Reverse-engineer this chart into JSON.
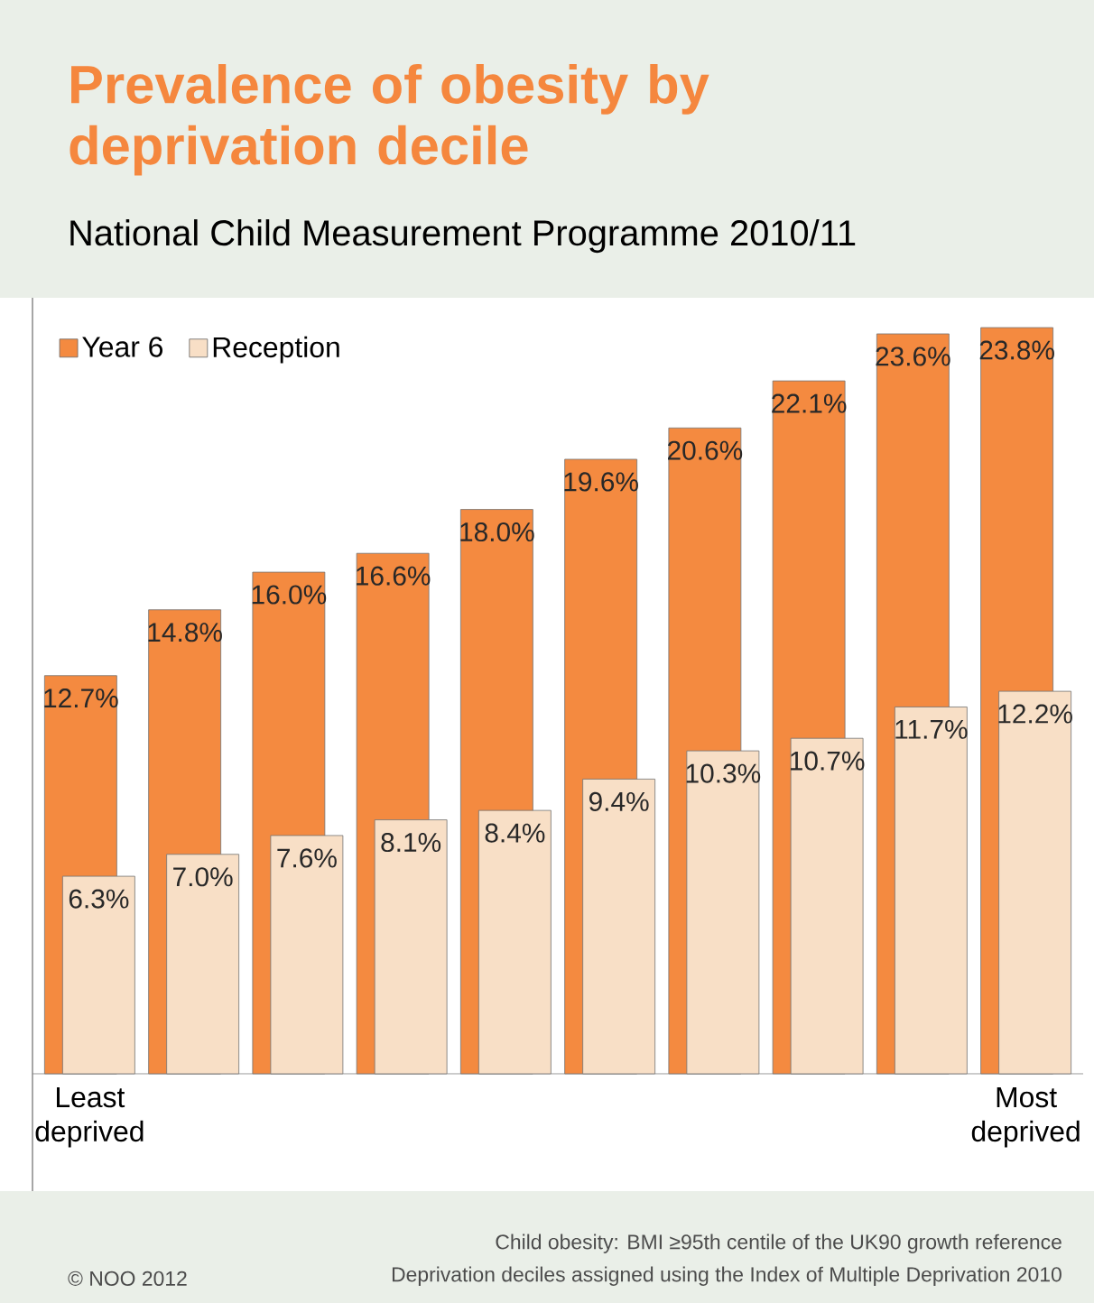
{
  "chart_data": {
    "type": "bar",
    "title": "Prevalence of obesity by deprivation decile",
    "subtitle": "National Child Measurement Programme 2010/11",
    "categories": [
      "Least deprived",
      null,
      null,
      null,
      null,
      null,
      null,
      null,
      null,
      "Most deprived"
    ],
    "series": [
      {
        "name": "Year 6",
        "color": "#f48a40",
        "values": [
          12.7,
          14.8,
          16.0,
          16.6,
          18.0,
          19.6,
          20.6,
          22.1,
          23.6,
          23.8
        ],
        "value_labels": [
          "12.7%",
          "14.8%",
          "16.0%",
          "16.6%",
          "18.0%",
          "19.6%",
          "20.6%",
          "22.1%",
          "23.6%",
          "23.8%"
        ]
      },
      {
        "name": "Reception",
        "color": "#f8dfc6",
        "values": [
          6.3,
          7.0,
          7.6,
          8.1,
          8.4,
          9.4,
          10.3,
          10.7,
          11.7,
          12.2
        ],
        "value_labels": [
          "6.3%",
          "7.0%",
          "7.6%",
          "8.1%",
          "8.4%",
          "9.4%",
          "10.3%",
          "10.7%",
          "11.7%",
          "12.2%"
        ]
      }
    ],
    "legend": "top left",
    "tick_labels": "x",
    "annotations": [
      "Child obesity: BMI ≥95th centile of the UK90 growth reference",
      "Deprivation deciles assigned using the Index of Multiple Deprivation 2010",
      "© NOO 2012"
    ]
  }
}
